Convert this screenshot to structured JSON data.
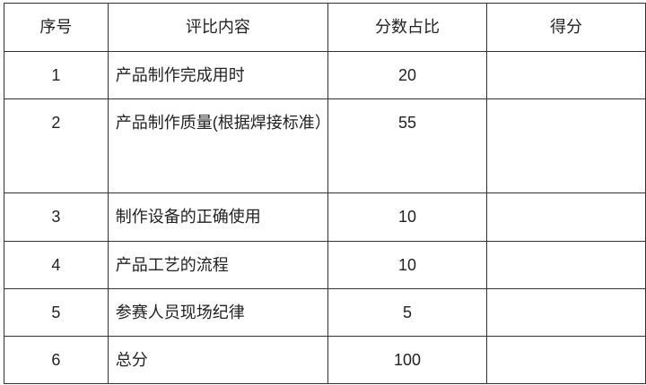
{
  "table": {
    "headers": [
      "序号",
      "评比内容",
      "分数占比",
      "得分"
    ],
    "rows": [
      {
        "no": "1",
        "content": "产品制作完成用时",
        "ratio": "20",
        "score": ""
      },
      {
        "no": "2",
        "content": "产品制作质量(根据焊接标准）",
        "ratio": "55",
        "score": ""
      },
      {
        "no": "3",
        "content": "制作设备的正确使用",
        "ratio": "10",
        "score": ""
      },
      {
        "no": "4",
        "content": "产品工艺的流程",
        "ratio": "10",
        "score": ""
      },
      {
        "no": "5",
        "content": "参赛人员现场纪律",
        "ratio": "5",
        "score": ""
      },
      {
        "no": "6",
        "content": "总分",
        "ratio": "100",
        "score": ""
      }
    ]
  }
}
